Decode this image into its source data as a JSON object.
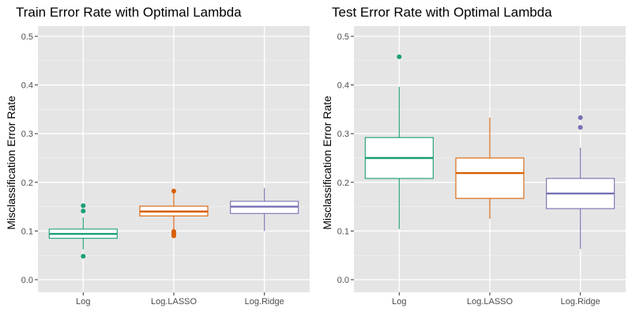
{
  "chart_data": [
    {
      "type": "boxplot",
      "title": "Train Error Rate with Optimal Lambda",
      "xlabel": "",
      "ylabel": "Misclassification Error Rate",
      "ylim": [
        0,
        0.5
      ],
      "yticks": [
        "0.0",
        "0.1",
        "0.2",
        "0.3",
        "0.4",
        "0.5"
      ],
      "ytick_values": [
        0,
        0.1,
        0.2,
        0.3,
        0.4,
        0.5
      ],
      "categories": [
        "Log",
        "Log.LASSO",
        "Log.Ridge"
      ],
      "colors": [
        "#1b9e77",
        "#d95f02",
        "#7570b3"
      ],
      "boxes": [
        {
          "category": "Log",
          "whisker_low": 0.062,
          "q1": 0.085,
          "median": 0.094,
          "q3": 0.104,
          "whisker_high": 0.128,
          "outliers": [
            0.152,
            0.141,
            0.048
          ]
        },
        {
          "category": "Log.LASSO",
          "whisker_low": 0.103,
          "q1": 0.131,
          "median": 0.14,
          "q3": 0.151,
          "whisker_high": 0.179,
          "outliers": [
            0.182,
            0.099,
            0.096,
            0.093,
            0.09
          ]
        },
        {
          "category": "Log.Ridge",
          "whisker_low": 0.1,
          "q1": 0.136,
          "median": 0.15,
          "q3": 0.161,
          "whisker_high": 0.188,
          "outliers": []
        }
      ]
    },
    {
      "type": "boxplot",
      "title": "Test Error Rate with Optimal Lambda",
      "xlabel": "",
      "ylabel": "Misclassification Error Rate",
      "ylim": [
        0,
        0.5
      ],
      "yticks": [
        "0.0",
        "0.1",
        "0.2",
        "0.3",
        "0.4",
        "0.5"
      ],
      "ytick_values": [
        0,
        0.1,
        0.2,
        0.3,
        0.4,
        0.5
      ],
      "categories": [
        "Log",
        "Log.LASSO",
        "Log.Ridge"
      ],
      "colors": [
        "#1b9e77",
        "#d95f02",
        "#7570b3"
      ],
      "boxes": [
        {
          "category": "Log",
          "whisker_low": 0.104,
          "q1": 0.208,
          "median": 0.25,
          "q3": 0.292,
          "whisker_high": 0.396,
          "outliers": [
            0.458
          ]
        },
        {
          "category": "Log.LASSO",
          "whisker_low": 0.125,
          "q1": 0.167,
          "median": 0.219,
          "q3": 0.25,
          "whisker_high": 0.333,
          "outliers": []
        },
        {
          "category": "Log.Ridge",
          "whisker_low": 0.063,
          "q1": 0.146,
          "median": 0.177,
          "q3": 0.208,
          "whisker_high": 0.271,
          "outliers": [
            0.333,
            0.313
          ]
        }
      ]
    }
  ]
}
